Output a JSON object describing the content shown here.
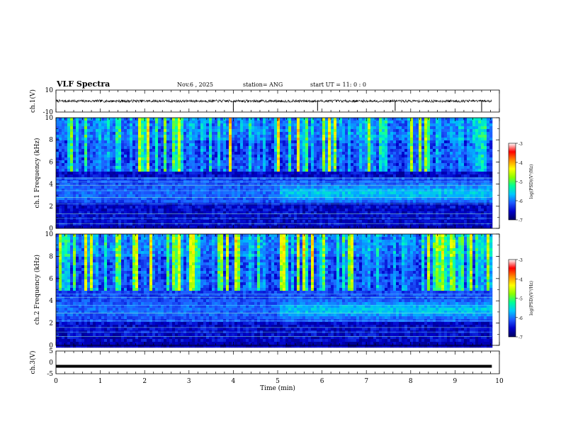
{
  "header": {
    "title": "VLF Spectra",
    "date": "Nov.6 , 2025",
    "station": "station= ANG",
    "start_ut": "start UT = 11: 0 : 0"
  },
  "colormap": [
    "#000060",
    "#0000c8",
    "#1e5aff",
    "#00b4ff",
    "#00ffb4",
    "#8cff00",
    "#ffff00",
    "#ff8c00",
    "#ff0000",
    "#ffffff"
  ],
  "chart_data": [
    {
      "type": "line",
      "name": "ch1-waveform",
      "ylabel": "ch.1(V)",
      "ylim": [
        -10,
        10
      ],
      "yticks": [
        "10",
        "-10"
      ],
      "baseline": 0,
      "noise_amplitude": 1.2,
      "spike_times_min": [
        4.0,
        5.9,
        7.65,
        9.6
      ]
    },
    {
      "type": "heatmap",
      "name": "ch1-spectrogram",
      "ylabel": "ch.1 Frequency (kHz)",
      "ylim": [
        0,
        10
      ],
      "yticks": [
        "0",
        "2",
        "4",
        "6",
        "8",
        "10"
      ],
      "colorbar": {
        "label": "log(PSD)(V²/Hz)",
        "range": [
          -7,
          -3
        ],
        "ticks": [
          "-3",
          "-4",
          "-5",
          "-6",
          "-7"
        ]
      },
      "noise_band_khz": [
        2.2,
        4.6
      ],
      "strong_band_start_min": 5.0,
      "hum_lines_khz": [
        0.4,
        0.9,
        1.3,
        2.2,
        2.8,
        3.4,
        3.9,
        4.2,
        4.55
      ],
      "seed": 11
    },
    {
      "type": "heatmap",
      "name": "ch2-spectrogram",
      "ylabel": "ch.2 Frequency (kHz)",
      "ylim": [
        0,
        10
      ],
      "yticks": [
        "0",
        "2",
        "4",
        "6",
        "8",
        "10"
      ],
      "colorbar": {
        "label": "log(PSD)(V²/Hz)",
        "range": [
          -7,
          -3
        ],
        "ticks": [
          "-3",
          "-4",
          "-5",
          "-6",
          "-7"
        ]
      },
      "noise_band_khz": [
        2.0,
        4.8
      ],
      "strong_band_start_min": 5.0,
      "hum_lines_khz": [
        0.8,
        1.2,
        1.6,
        2.2,
        2.9,
        3.6,
        4.3,
        4.6
      ],
      "seed": 29
    },
    {
      "type": "line",
      "name": "ch3-trace",
      "ylabel": "ch.3(V)",
      "ylim": [
        -5,
        5
      ],
      "yticks": [
        "5",
        "0",
        "-5"
      ],
      "constant_value": -1.7
    }
  ],
  "xaxis": {
    "label": "Time (min)",
    "range": [
      0,
      10
    ],
    "data_end": 9.83,
    "ticks": [
      "0",
      "1",
      "2",
      "3",
      "4",
      "5",
      "6",
      "7",
      "8",
      "9",
      "10"
    ]
  }
}
